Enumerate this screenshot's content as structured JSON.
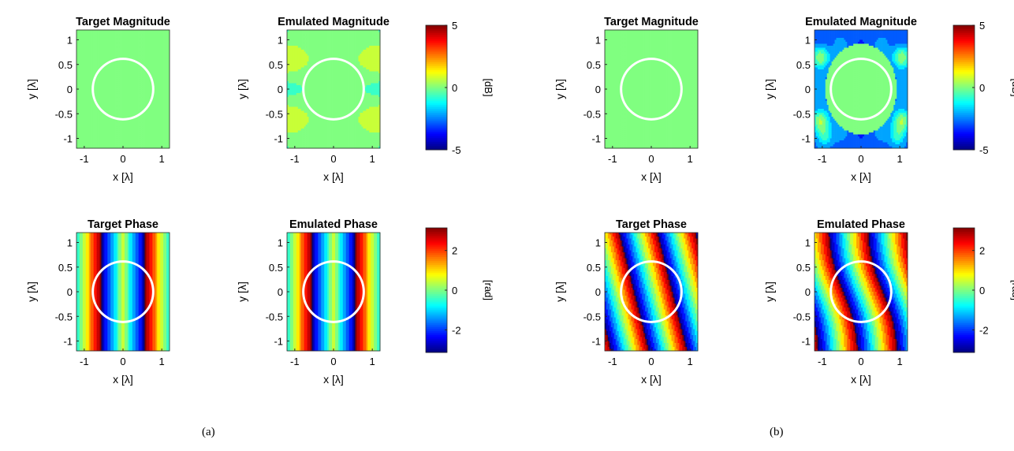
{
  "figure": {
    "captions": [
      "(a)",
      "(b)"
    ],
    "colors": {
      "circle": "#ffffff",
      "uniform": "#8cf266",
      "background": "#ffffff"
    },
    "colormap": "jet",
    "colorbar_units": {
      "magnitude": "[dB]",
      "phase": "[rad]"
    }
  },
  "chart_data": [
    {
      "type": "heatmap",
      "group": "a",
      "title": "Target Magnitude",
      "field": "uniform",
      "xlabel": "x [λ]",
      "ylabel": "y [λ]",
      "xticks": [
        "-1",
        "0",
        "1"
      ],
      "xtick_values": [
        -1,
        0,
        1
      ],
      "yticks": [
        "1",
        "0.5",
        "0",
        "-0.5",
        "-1"
      ],
      "ytick_values": [
        1,
        0.5,
        0,
        -0.5,
        -1
      ],
      "xlim": [
        -1.2,
        1.2
      ],
      "ylim": [
        -1.2,
        1.2
      ],
      "circle_radius": 0.78,
      "clim": [
        -5,
        5
      ]
    },
    {
      "type": "heatmap",
      "group": "a",
      "title": "Emulated Magnitude",
      "field": "mag-a",
      "xlabel": "x [λ]",
      "ylabel": "y [λ]",
      "xticks": [
        "-1",
        "0",
        "1"
      ],
      "xtick_values": [
        -1,
        0,
        1
      ],
      "yticks": [
        "1",
        "0.5",
        "0",
        "-0.5",
        "-1"
      ],
      "ytick_values": [
        1,
        0.5,
        0,
        -0.5,
        -1
      ],
      "xlim": [
        -1.2,
        1.2
      ],
      "ylim": [
        -1.2,
        1.2
      ],
      "circle_radius": 0.78,
      "clim": [
        -5,
        5
      ],
      "colorbar": {
        "ticks": [
          "5",
          "0",
          "-5"
        ],
        "tick_values": [
          5,
          0,
          -5
        ],
        "label": "[dB]"
      }
    },
    {
      "type": "heatmap",
      "group": "a",
      "title": "Target Phase",
      "field": "phase-a",
      "xlabel": "x [λ]",
      "ylabel": "y [λ]",
      "xticks": [
        "-1",
        "0",
        "1"
      ],
      "xtick_values": [
        -1,
        0,
        1
      ],
      "yticks": [
        "1",
        "0.5",
        "0",
        "-0.5",
        "-1"
      ],
      "ytick_values": [
        1,
        0.5,
        0,
        -0.5,
        -1
      ],
      "xlim": [
        -1.2,
        1.2
      ],
      "ylim": [
        -1.2,
        1.2
      ],
      "circle_radius": 0.78,
      "clim": [
        -3.14,
        3.14
      ]
    },
    {
      "type": "heatmap",
      "group": "a",
      "title": "Emulated Phase",
      "field": "phase-a",
      "xlabel": "x [λ]",
      "ylabel": "y [λ]",
      "xticks": [
        "-1",
        "0",
        "1"
      ],
      "xtick_values": [
        -1,
        0,
        1
      ],
      "yticks": [
        "1",
        "0.5",
        "0",
        "-0.5",
        "-1"
      ],
      "ytick_values": [
        1,
        0.5,
        0,
        -0.5,
        -1
      ],
      "xlim": [
        -1.2,
        1.2
      ],
      "ylim": [
        -1.2,
        1.2
      ],
      "circle_radius": 0.78,
      "clim": [
        -3.14,
        3.14
      ],
      "colorbar": {
        "ticks": [
          "2",
          "0",
          "-2"
        ],
        "tick_values": [
          2,
          0,
          -2
        ],
        "label": "[rad]"
      }
    },
    {
      "type": "heatmap",
      "group": "b",
      "title": "Target Magnitude",
      "field": "uniform",
      "xlabel": "x [λ]",
      "ylabel": "y [λ]",
      "xticks": [
        "-1",
        "0",
        "1"
      ],
      "xtick_values": [
        -1,
        0,
        1
      ],
      "yticks": [
        "1",
        "0.5",
        "0",
        "-0.5",
        "-1"
      ],
      "ytick_values": [
        1,
        0.5,
        0,
        -0.5,
        -1
      ],
      "xlim": [
        -1.2,
        1.2
      ],
      "ylim": [
        -1.2,
        1.2
      ],
      "circle_radius": 0.78,
      "clim": [
        -5,
        5
      ]
    },
    {
      "type": "heatmap",
      "group": "b",
      "title": "Emulated Magnitude",
      "field": "mag-b",
      "xlabel": "x [λ]",
      "ylabel": "y [λ]",
      "xticks": [
        "-1",
        "0",
        "1"
      ],
      "xtick_values": [
        -1,
        0,
        1
      ],
      "yticks": [
        "1",
        "0.5",
        "0",
        "-0.5",
        "-1"
      ],
      "ytick_values": [
        1,
        0.5,
        0,
        -0.5,
        -1
      ],
      "xlim": [
        -1.2,
        1.2
      ],
      "ylim": [
        -1.2,
        1.2
      ],
      "circle_radius": 0.78,
      "clim": [
        -5,
        5
      ],
      "colorbar": {
        "ticks": [
          "5",
          "0",
          "-5"
        ],
        "tick_values": [
          5,
          0,
          -5
        ],
        "label": "[dB]"
      }
    },
    {
      "type": "heatmap",
      "group": "b",
      "title": "Target Phase",
      "field": "phase-b",
      "xlabel": "x [λ]",
      "ylabel": "y [λ]",
      "xticks": [
        "-1",
        "0",
        "1"
      ],
      "xtick_values": [
        -1,
        0,
        1
      ],
      "yticks": [
        "1",
        "0.5",
        "0",
        "-0.5",
        "-1"
      ],
      "ytick_values": [
        1,
        0.5,
        0,
        -0.5,
        -1
      ],
      "xlim": [
        -1.2,
        1.2
      ],
      "ylim": [
        -1.2,
        1.2
      ],
      "circle_radius": 0.78,
      "clim": [
        -3.14,
        3.14
      ]
    },
    {
      "type": "heatmap",
      "group": "b",
      "title": "Emulated Phase",
      "field": "phase-b-emu",
      "xlabel": "x [λ]",
      "ylabel": "y [λ]",
      "xticks": [
        "-1",
        "0",
        "1"
      ],
      "xtick_values": [
        -1,
        0,
        1
      ],
      "yticks": [
        "1",
        "0.5",
        "0",
        "-0.5",
        "-1"
      ],
      "ytick_values": [
        1,
        0.5,
        0,
        -0.5,
        -1
      ],
      "xlim": [
        -1.2,
        1.2
      ],
      "ylim": [
        -1.2,
        1.2
      ],
      "circle_radius": 0.78,
      "clim": [
        -3.14,
        3.14
      ],
      "colorbar": {
        "ticks": [
          "2",
          "0",
          "-2"
        ],
        "tick_values": [
          2,
          0,
          -2
        ],
        "label": "[rad]"
      }
    }
  ]
}
